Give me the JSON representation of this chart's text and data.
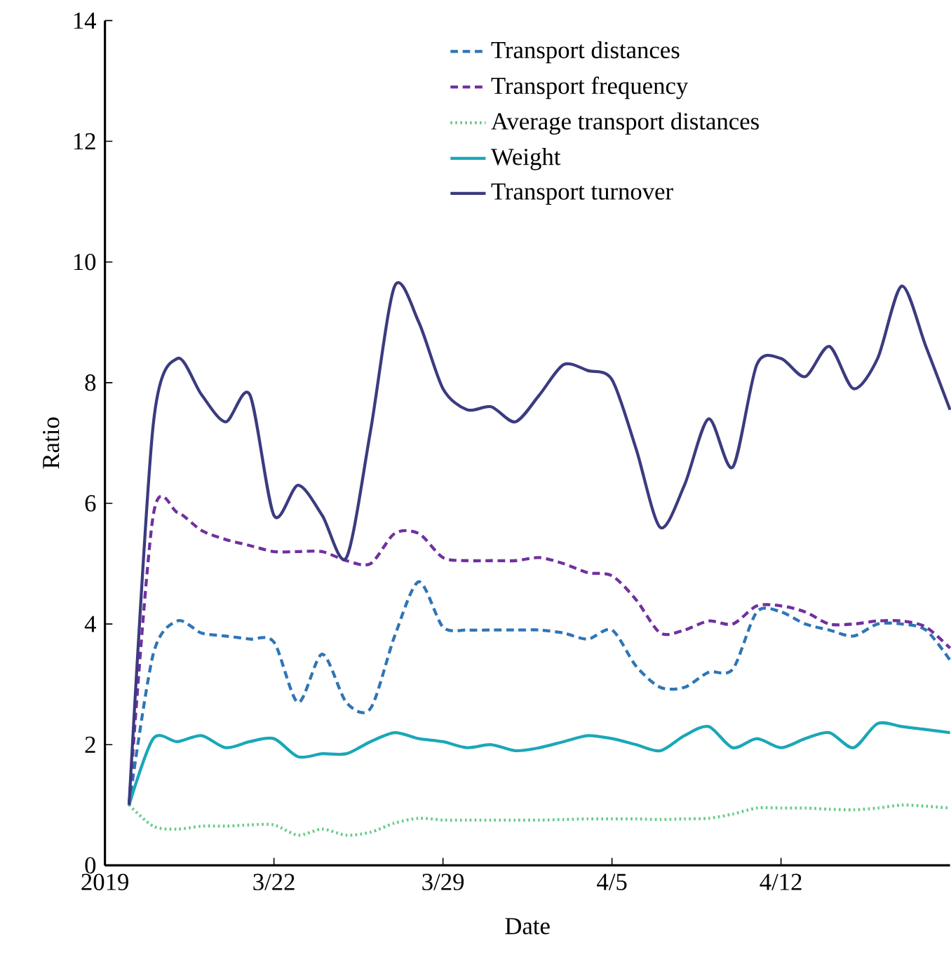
{
  "chart_data": {
    "type": "line",
    "xlabel": "Date",
    "ylabel": "Ratio",
    "x": [
      "2019-03-16",
      "2019-03-17",
      "2019-03-18",
      "2019-03-19",
      "2019-03-20",
      "2019-03-21",
      "2019-03-22",
      "2019-03-23",
      "2019-03-24",
      "2019-03-25",
      "2019-03-26",
      "2019-03-27",
      "2019-03-28",
      "2019-03-29",
      "2019-03-30",
      "2019-03-31",
      "2019-04-01",
      "2019-04-02",
      "2019-04-03",
      "2019-04-04",
      "2019-04-05",
      "2019-04-06",
      "2019-04-07",
      "2019-04-08",
      "2019-04-09",
      "2019-04-10",
      "2019-04-11",
      "2019-04-12",
      "2019-04-13",
      "2019-04-14",
      "2019-04-15",
      "2019-04-16",
      "2019-04-17",
      "2019-04-18",
      "2019-04-19"
    ],
    "xlim": [
      "2019-03-15",
      "2019-04-19"
    ],
    "xticks": [
      {
        "value": "2019-03-15",
        "label": "2019"
      },
      {
        "value": "2019-03-22",
        "label": "3/22"
      },
      {
        "value": "2019-03-29",
        "label": "3/29"
      },
      {
        "value": "2019-04-05",
        "label": "4/5"
      },
      {
        "value": "2019-04-12",
        "label": "4/12"
      }
    ],
    "ylim": [
      0,
      14
    ],
    "yticks": [
      0,
      2,
      4,
      6,
      8,
      10,
      12,
      14
    ],
    "grid": false,
    "legend": "top right",
    "marker": "none",
    "series": [
      {
        "name": "Transport distances",
        "color": "#2e75b6",
        "line_style": "dashed",
        "values": [
          1.0,
          3.5,
          4.05,
          3.85,
          3.8,
          3.75,
          3.7,
          2.7,
          3.5,
          2.7,
          2.6,
          3.8,
          4.7,
          3.95,
          3.9,
          3.9,
          3.9,
          3.9,
          3.85,
          3.75,
          3.9,
          3.3,
          2.95,
          2.95,
          3.2,
          3.25,
          4.2,
          4.2,
          4.0,
          3.9,
          3.8,
          4.0,
          4.0,
          3.9,
          3.4
        ]
      },
      {
        "name": "Transport frequency",
        "color": "#7030a0",
        "line_style": "dashed",
        "values": [
          1.0,
          5.8,
          5.85,
          5.55,
          5.4,
          5.3,
          5.2,
          5.2,
          5.2,
          5.05,
          5.0,
          5.5,
          5.5,
          5.1,
          5.05,
          5.05,
          5.05,
          5.1,
          5.0,
          4.85,
          4.8,
          4.4,
          3.85,
          3.9,
          4.05,
          4.0,
          4.3,
          4.3,
          4.2,
          4.0,
          4.0,
          4.05,
          4.05,
          3.95,
          3.6
        ]
      },
      {
        "name": "Average transport distances",
        "color": "#66cc88",
        "line_style": "dotted",
        "values": [
          1.0,
          0.65,
          0.6,
          0.65,
          0.65,
          0.67,
          0.67,
          0.5,
          0.6,
          0.5,
          0.55,
          0.7,
          0.78,
          0.75,
          0.75,
          0.75,
          0.75,
          0.75,
          0.76,
          0.77,
          0.77,
          0.77,
          0.76,
          0.77,
          0.78,
          0.85,
          0.95,
          0.95,
          0.95,
          0.93,
          0.92,
          0.95,
          1.0,
          0.98,
          0.95
        ]
      },
      {
        "name": "Weight",
        "color": "#1aa7b8",
        "line_style": "solid",
        "values": [
          1.0,
          2.1,
          2.05,
          2.15,
          1.95,
          2.05,
          2.1,
          1.8,
          1.85,
          1.85,
          2.05,
          2.2,
          2.1,
          2.05,
          1.95,
          2.0,
          1.9,
          1.95,
          2.05,
          2.15,
          2.1,
          2.0,
          1.9,
          2.15,
          2.3,
          1.95,
          2.1,
          1.95,
          2.1,
          2.2,
          1.95,
          2.35,
          2.3,
          2.25,
          2.2
        ]
      },
      {
        "name": "Transport turnover",
        "color": "#3b3b80",
        "line_style": "solid",
        "values": [
          1.0,
          7.3,
          8.4,
          7.8,
          7.35,
          7.8,
          5.8,
          6.3,
          5.8,
          5.1,
          7.2,
          9.6,
          9.0,
          7.9,
          7.55,
          7.6,
          7.35,
          7.8,
          8.3,
          8.2,
          8.05,
          6.9,
          5.6,
          6.3,
          7.4,
          6.6,
          8.3,
          8.4,
          8.1,
          8.6,
          7.9,
          8.4,
          9.6,
          8.6,
          7.55
        ]
      }
    ]
  }
}
